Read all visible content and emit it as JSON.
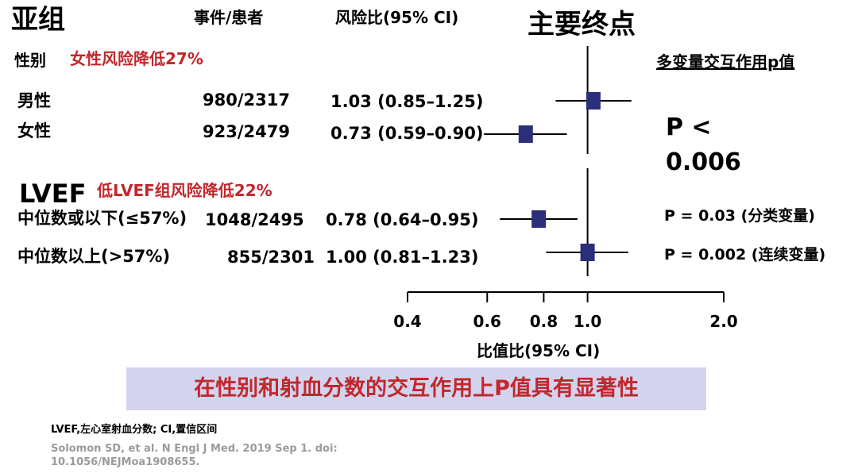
{
  "header": {
    "subgroup_title": "亚组",
    "events_header": "事件/患者",
    "hr_header": "风险比(95% CI)",
    "main_title": "主要终点",
    "interaction_header": "多变量交互作用p值"
  },
  "groups": [
    {
      "label": "性别",
      "note": "女性风险降低27%"
    },
    {
      "label": "LVEF",
      "note": "低LVEF组风险降低22%"
    }
  ],
  "p_values": {
    "sex_line1": "P <",
    "sex_line2": "0.006",
    "lvef_categorical": "P = 0.03 (分类变量)",
    "lvef_continuous": "P = 0.002 (连续变量)"
  },
  "chart_data": {
    "type": "forest",
    "xlabel": "比值比(95% CI)",
    "xlim": [
      0.4,
      2.0
    ],
    "xscale": "log",
    "reference_line": 1.0,
    "ticks": [
      {
        "value": 0.4,
        "label": "0.4"
      },
      {
        "value": 0.6,
        "label": "0.6"
      },
      {
        "value": 0.8,
        "label": "0.8"
      },
      {
        "value": 1.0,
        "label": "1.0"
      },
      {
        "value": 2.0,
        "label": "2.0"
      }
    ],
    "rows": [
      {
        "label": "男性",
        "events": "980/2317",
        "hr_text": "1.03 (0.85–1.25)",
        "estimate": 1.03,
        "lower": 0.85,
        "upper": 1.25
      },
      {
        "label": "女性",
        "events": "923/2479",
        "hr_text": "0.73 (0.59–0.90)",
        "estimate": 0.73,
        "lower": 0.59,
        "upper": 0.9
      },
      {
        "label": "中位数或以下(≤57%)",
        "events": "1048/2495",
        "hr_text": "0.78 (0.64–0.95)",
        "estimate": 0.78,
        "lower": 0.64,
        "upper": 0.95
      },
      {
        "label": "中位数以上(>57%)",
        "events": "855/2301",
        "hr_text": "1.00 (0.81–1.23)",
        "estimate": 1.0,
        "lower": 0.81,
        "upper": 1.23
      }
    ],
    "marker_color": "#2b2f7a"
  },
  "banner": "在性别和射血分数的交互作用上P值具有显著性",
  "footnote": {
    "abbrev": "LVEF,左心室射血分数; CI,置信区间",
    "citation_line1": "Solomon SD, et al. N Engl J Med. 2019 Sep 1. doi:",
    "citation_line2": "10.1056/NEJMoa1908655."
  }
}
